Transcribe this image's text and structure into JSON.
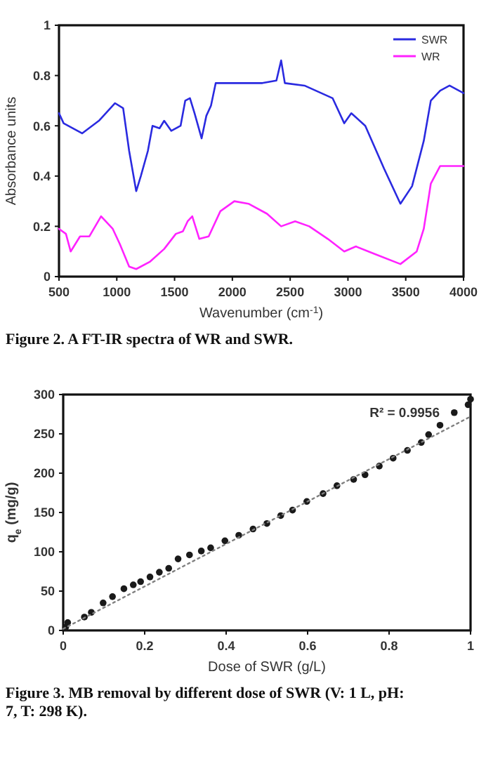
{
  "chart_data": [
    {
      "type": "line",
      "xlabel": "Wavenumber (cm$^{-1}$)",
      "ylabel": "Absorbance units",
      "xlim": [
        500,
        4000
      ],
      "xticks": [
        500,
        1000,
        1500,
        2000,
        2500,
        3000,
        3500,
        4000
      ],
      "ylim": [
        0,
        1
      ],
      "yticks": [
        0,
        0.2,
        0.4,
        0.6,
        0.8,
        1
      ],
      "legend": "top right",
      "grid": false,
      "annotations": [
        "Figure 2. A FT-IR spectra of WR and SWR."
      ],
      "series": [
        {
          "name": "SWR",
          "color": "#2a2ae0",
          "x": [
            500,
            540,
            700,
            845,
            985,
            1055,
            1107,
            1168,
            1208,
            1269,
            1309,
            1370,
            1410,
            1471,
            1552,
            1592,
            1633,
            1673,
            1734,
            1775,
            1815,
            1856,
            1936,
            2098,
            2260,
            2381,
            2422,
            2454,
            2624,
            2867,
            2968,
            3029,
            3150,
            3312,
            3454,
            3555,
            3656,
            3717,
            3798,
            3879,
            4000
          ],
          "values": [
            0.65,
            0.61,
            0.57,
            0.62,
            0.69,
            0.67,
            0.5,
            0.34,
            0.4,
            0.5,
            0.6,
            0.59,
            0.62,
            0.58,
            0.6,
            0.7,
            0.71,
            0.65,
            0.55,
            0.64,
            0.68,
            0.77,
            0.77,
            0.77,
            0.77,
            0.78,
            0.86,
            0.77,
            0.76,
            0.71,
            0.61,
            0.65,
            0.6,
            0.43,
            0.29,
            0.36,
            0.54,
            0.7,
            0.74,
            0.76,
            0.73
          ]
        },
        {
          "name": "WR",
          "color": "#ff22ff",
          "x": [
            500,
            560,
            601,
            682,
            763,
            864,
            965,
            1026,
            1107,
            1168,
            1289,
            1410,
            1511,
            1572,
            1613,
            1653,
            1714,
            1795,
            1896,
            2017,
            2139,
            2300,
            2422,
            2543,
            2665,
            2826,
            2968,
            3069,
            3231,
            3454,
            3595,
            3656,
            3697,
            3717,
            3798,
            4000
          ],
          "values": [
            0.19,
            0.17,
            0.1,
            0.16,
            0.16,
            0.24,
            0.19,
            0.13,
            0.04,
            0.03,
            0.06,
            0.11,
            0.17,
            0.18,
            0.22,
            0.24,
            0.15,
            0.16,
            0.26,
            0.3,
            0.29,
            0.25,
            0.2,
            0.22,
            0.2,
            0.15,
            0.1,
            0.12,
            0.09,
            0.05,
            0.1,
            0.19,
            0.31,
            0.37,
            0.44,
            0.44
          ]
        }
      ]
    },
    {
      "type": "scatter",
      "xlabel": "Dose of SWR (g/L)",
      "ylabel": "q$_{e}$ (mg/g)",
      "xlim": [
        0,
        1
      ],
      "xticks": [
        0,
        0.2,
        0.4,
        0.6,
        0.8,
        1
      ],
      "ylim": [
        0,
        300
      ],
      "yticks": [
        0,
        50,
        100,
        150,
        200,
        250,
        300
      ],
      "grid": false,
      "annotations": [
        "R² = 0.9956",
        "Figure 3. MB removal by different dose of SWR (V: 1 L, pH: 7, T: 298 K)."
      ],
      "series": [
        {
          "color": "#1a1a1a",
          "marker": "circle",
          "x": [
            0.006,
            0.011,
            0.052,
            0.069,
            0.098,
            0.121,
            0.149,
            0.172,
            0.19,
            0.213,
            0.236,
            0.259,
            0.282,
            0.31,
            0.339,
            0.362,
            0.397,
            0.431,
            0.466,
            0.5,
            0.534,
            0.563,
            0.598,
            0.638,
            0.672,
            0.713,
            0.741,
            0.776,
            0.81,
            0.845,
            0.879,
            0.897,
            0.925,
            0.96,
            0.994,
            1.0
          ],
          "values": [
            4,
            10,
            17,
            23,
            35,
            43,
            53,
            58,
            62,
            68,
            74,
            79,
            91,
            96,
            101,
            105,
            114,
            121,
            129,
            136,
            146,
            153,
            164,
            174,
            184,
            192,
            198,
            209,
            219,
            229,
            239,
            249,
            261,
            277,
            287,
            294
          ]
        },
        {
          "type": "line",
          "color": "#808080",
          "line_style": "dotted",
          "x": [
            0,
            1
          ],
          "values": [
            2,
            272
          ]
        }
      ]
    }
  ]
}
